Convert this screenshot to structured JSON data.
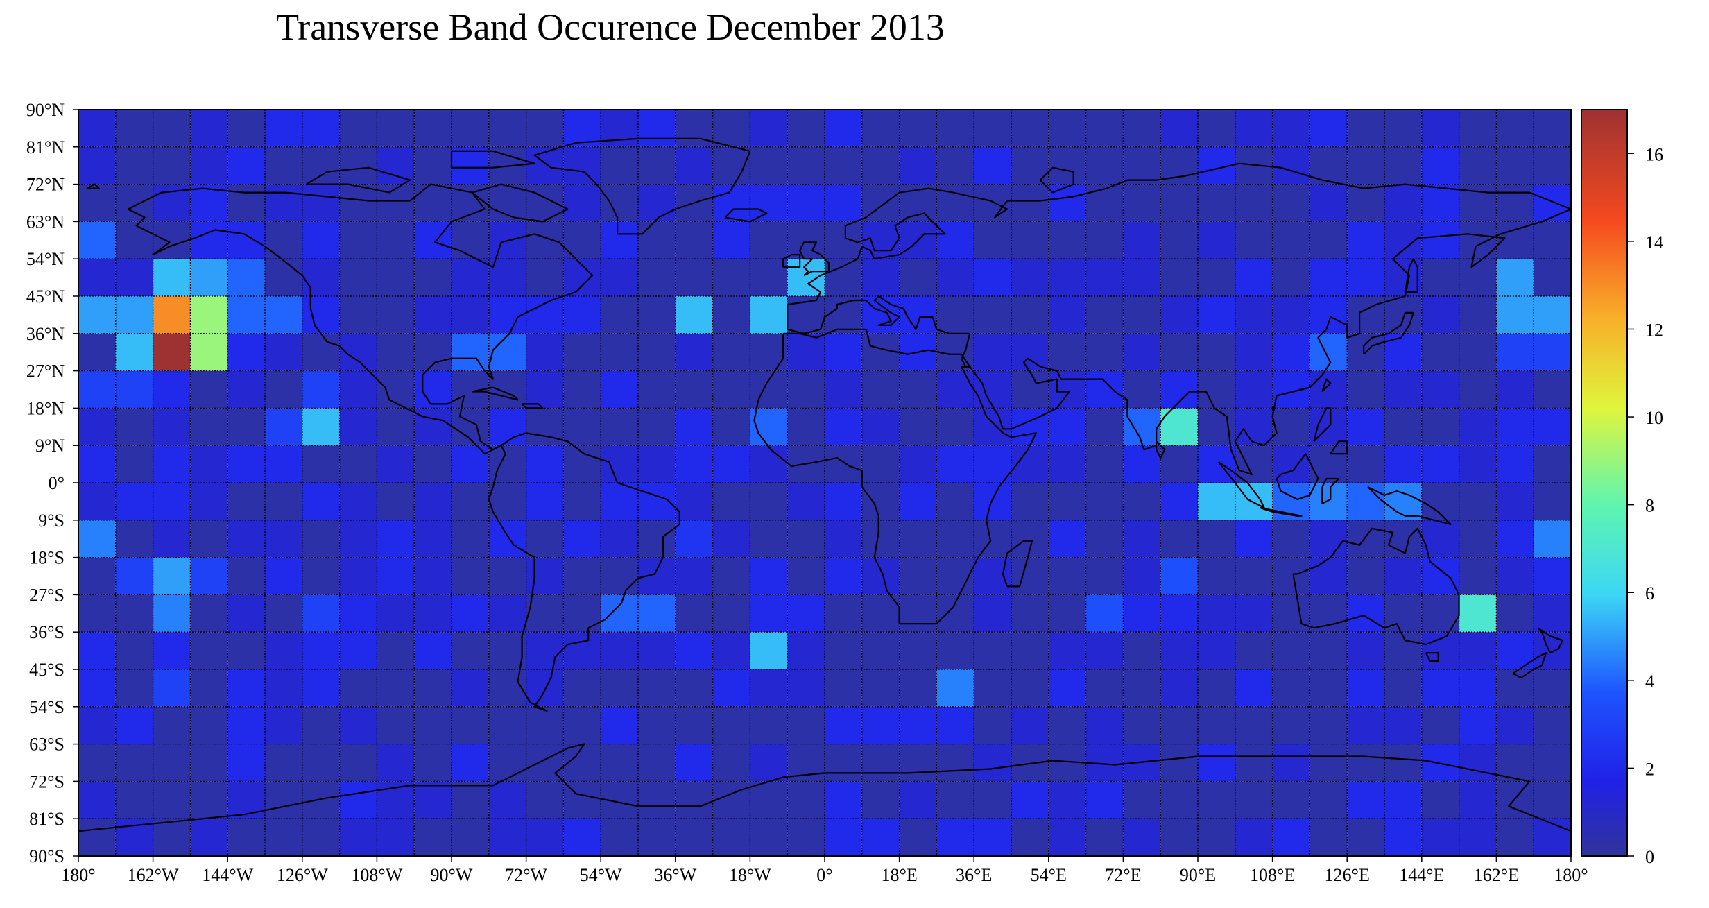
{
  "chart_data": {
    "type": "heatmap",
    "title": "Transverse Band Occurence December 2013",
    "x_tick_labels": [
      "180°",
      "162°W",
      "144°W",
      "126°W",
      "108°W",
      "90°W",
      "72°W",
      "54°W",
      "36°W",
      "18°W",
      "0°",
      "18°E",
      "36°E",
      "54°E",
      "72°E",
      "90°E",
      "108°E",
      "126°E",
      "144°E",
      "162°E",
      "180°"
    ],
    "y_tick_labels": [
      "90°N",
      "81°N",
      "72°N",
      "63°N",
      "54°N",
      "45°N",
      "36°N",
      "27°N",
      "18°N",
      "9°N",
      "0°",
      "9°S",
      "18°S",
      "27°S",
      "36°S",
      "45°S",
      "54°S",
      "63°S",
      "72°S",
      "81°S",
      "90°S"
    ],
    "x_range": [
      -180,
      180
    ],
    "y_range": [
      -90,
      90
    ],
    "cell_width_deg": 9,
    "cell_height_deg": 9,
    "colorbar": {
      "ticks": [
        0,
        2,
        4,
        6,
        8,
        10,
        12,
        14,
        16
      ],
      "range": [
        0,
        17
      ],
      "colormap": "jet"
    },
    "basemap": "world coastlines",
    "grid": true,
    "cells": [
      {
        "lon": -180,
        "lat": 54,
        "value": 4
      },
      {
        "lon": -162,
        "lat": 45,
        "value": 5.5
      },
      {
        "lon": -153,
        "lat": 45,
        "value": 5
      },
      {
        "lon": -144,
        "lat": 45,
        "value": 4
      },
      {
        "lon": -180,
        "lat": 36,
        "value": 5
      },
      {
        "lon": -171,
        "lat": 36,
        "value": 5
      },
      {
        "lon": -162,
        "lat": 36,
        "value": 13
      },
      {
        "lon": -153,
        "lat": 36,
        "value": 9
      },
      {
        "lon": -144,
        "lat": 36,
        "value": 4
      },
      {
        "lon": -135,
        "lat": 36,
        "value": 4
      },
      {
        "lon": -171,
        "lat": 27,
        "value": 5.5
      },
      {
        "lon": -162,
        "lat": 27,
        "value": 17
      },
      {
        "lon": -153,
        "lat": 27,
        "value": 9
      },
      {
        "lon": -180,
        "lat": 18,
        "value": 3
      },
      {
        "lon": -171,
        "lat": 18,
        "value": 3
      },
      {
        "lon": -135,
        "lat": 9,
        "value": 3
      },
      {
        "lon": -126,
        "lat": 9,
        "value": 5.5
      },
      {
        "lon": -126,
        "lat": 18,
        "value": 3
      },
      {
        "lon": -90,
        "lat": 27,
        "value": 4
      },
      {
        "lon": -81,
        "lat": 27,
        "value": 4
      },
      {
        "lon": -36,
        "lat": 36,
        "value": 5.5
      },
      {
        "lon": -18,
        "lat": 36,
        "value": 5.5
      },
      {
        "lon": -9,
        "lat": 45,
        "value": 5.5
      },
      {
        "lon": -18,
        "lat": 9,
        "value": 4
      },
      {
        "lon": 72,
        "lat": 9,
        "value": 4
      },
      {
        "lon": 81,
        "lat": 9,
        "value": 7
      },
      {
        "lon": 117,
        "lat": 27,
        "value": 4
      },
      {
        "lon": 162,
        "lat": 45,
        "value": 5
      },
      {
        "lon": 162,
        "lat": 36,
        "value": 5
      },
      {
        "lon": 171,
        "lat": 36,
        "value": 5
      },
      {
        "lon": 171,
        "lat": 27,
        "value": 3
      },
      {
        "lon": 162,
        "lat": 27,
        "value": 3
      },
      {
        "lon": 90,
        "lat": -9,
        "value": 5.5
      },
      {
        "lon": 99,
        "lat": -9,
        "value": 5.5
      },
      {
        "lon": 108,
        "lat": -9,
        "value": 4
      },
      {
        "lon": 117,
        "lat": -9,
        "value": 4.5
      },
      {
        "lon": 126,
        "lat": -9,
        "value": 4
      },
      {
        "lon": 135,
        "lat": -9,
        "value": 4.5
      },
      {
        "lon": -180,
        "lat": -18,
        "value": 4.5
      },
      {
        "lon": 171,
        "lat": -18,
        "value": 4.5
      },
      {
        "lon": -162,
        "lat": -27,
        "value": 5
      },
      {
        "lon": -162,
        "lat": -36,
        "value": 4.5
      },
      {
        "lon": -171,
        "lat": -27,
        "value": 3
      },
      {
        "lon": -153,
        "lat": -27,
        "value": 3
      },
      {
        "lon": 153,
        "lat": -36,
        "value": 7
      },
      {
        "lon": -18,
        "lat": -45,
        "value": 5.5
      },
      {
        "lon": 27,
        "lat": -54,
        "value": 4.5
      },
      {
        "lon": -54,
        "lat": -36,
        "value": 4
      },
      {
        "lon": -45,
        "lat": -36,
        "value": 4
      },
      {
        "lon": -36,
        "lat": -18,
        "value": 2.5
      },
      {
        "lon": 81,
        "lat": -27,
        "value": 3.5
      },
      {
        "lon": 63,
        "lat": -36,
        "value": 3.5
      },
      {
        "lon": -126,
        "lat": -36,
        "value": 3
      },
      {
        "lon": -162,
        "lat": -54,
        "value": 3
      }
    ]
  }
}
